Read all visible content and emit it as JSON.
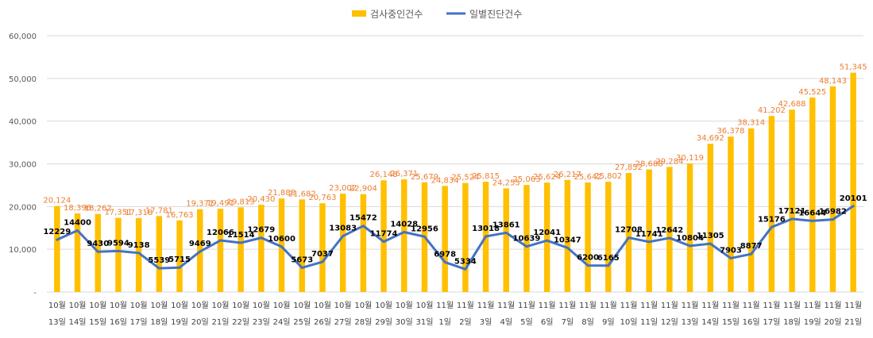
{
  "chart_data": {
    "type": "bar+line",
    "legend": {
      "position": "top",
      "items": [
        {
          "name": "검사중인건수",
          "color": "#FFC000",
          "kind": "bar"
        },
        {
          "name": "일별진단건수",
          "color": "#4472C4",
          "kind": "line"
        }
      ]
    },
    "y_axis": {
      "ylim": [
        0,
        60000
      ],
      "ticks": [
        "-",
        "10,000",
        "20,000",
        "30,000",
        "40,000",
        "50,000",
        "60,000"
      ],
      "tick_values": [
        0,
        10000,
        20000,
        30000,
        40000,
        50000,
        60000
      ],
      "grid": true
    },
    "categories": [
      [
        "10월",
        "13일"
      ],
      [
        "10월",
        "14일"
      ],
      [
        "10월",
        "15일"
      ],
      [
        "10월",
        "16일"
      ],
      [
        "10월",
        "17일"
      ],
      [
        "10월",
        "18일"
      ],
      [
        "10월",
        "19일"
      ],
      [
        "10월",
        "20일"
      ],
      [
        "10월",
        "21일"
      ],
      [
        "10월",
        "22일"
      ],
      [
        "10월",
        "23일"
      ],
      [
        "10월",
        "24일"
      ],
      [
        "10월",
        "25일"
      ],
      [
        "10월",
        "26일"
      ],
      [
        "10월",
        "27일"
      ],
      [
        "10월",
        "28일"
      ],
      [
        "10월",
        "29일"
      ],
      [
        "10월",
        "30일"
      ],
      [
        "10월",
        "31일"
      ],
      [
        "11월",
        "1일"
      ],
      [
        "11월",
        "2일"
      ],
      [
        "11월",
        "3일"
      ],
      [
        "11월",
        "4일"
      ],
      [
        "11월",
        "5일"
      ],
      [
        "11월",
        "6일"
      ],
      [
        "11월",
        "7일"
      ],
      [
        "11월",
        "8일"
      ],
      [
        "11월",
        "9일"
      ],
      [
        "11월",
        "10일"
      ],
      [
        "11월",
        "11일"
      ],
      [
        "11월",
        "12일"
      ],
      [
        "11월",
        "13일"
      ],
      [
        "11월",
        "14일"
      ],
      [
        "11월",
        "15일"
      ],
      [
        "11월",
        "16일"
      ],
      [
        "11월",
        "17일"
      ],
      [
        "11월",
        "18일"
      ],
      [
        "11월",
        "19일"
      ],
      [
        "11월",
        "20일"
      ],
      [
        "11월",
        "21일"
      ]
    ],
    "series": [
      {
        "name": "검사중인건수",
        "type": "bar",
        "color": "#FFC000",
        "label_color": "#ED7D31",
        "values": [
          20124,
          18396,
          18262,
          17351,
          17318,
          17781,
          16763,
          19371,
          19491,
          19813,
          20430,
          21888,
          21682,
          20763,
          23002,
          22904,
          26148,
          26371,
          25679,
          24834,
          25524,
          25815,
          24255,
          25063,
          25624,
          26217,
          25642,
          25802,
          27852,
          28688,
          29284,
          30119,
          34692,
          36378,
          38314,
          41202,
          42688,
          45525,
          48143,
          51345
        ],
        "labels": [
          "20,124",
          "18,396",
          "18,262",
          "17,351",
          "17,318",
          "17,781",
          "16,763",
          "19,371",
          "19,491",
          "19,813",
          "20,430",
          "21,888",
          "21,682",
          "20,763",
          "23,002",
          "22,904",
          "26,148",
          "26,371",
          "25,679",
          "24,834",
          "25,524",
          "25,815",
          "24,255",
          "25,063",
          "25,624",
          "26,217",
          "25,642",
          "25,802",
          "27,852",
          "28,688",
          "29,284",
          "30,119",
          "34,692",
          "36,378",
          "38,314",
          "41,202",
          "42,688",
          "45,525",
          "48,143",
          "51,345"
        ]
      },
      {
        "name": "일별진단건수",
        "type": "line",
        "color": "#4472C4",
        "label_color": "#000000",
        "values": [
          12229,
          14400,
          9430,
          9594,
          9138,
          5539,
          5715,
          9469,
          12066,
          11514,
          12679,
          10600,
          5673,
          7037,
          13083,
          15472,
          11774,
          14028,
          12956,
          6978,
          5334,
          13018,
          13861,
          10639,
          12041,
          10347,
          6200,
          6165,
          12708,
          11741,
          12642,
          10804,
          11305,
          7903,
          8877,
          15176,
          17121,
          16644,
          16982,
          20101
        ],
        "labels": [
          "12229",
          "14400",
          "9430",
          "9594",
          "9138",
          "5539",
          "5715",
          "9469",
          "12066",
          "11514",
          "12679",
          "10600",
          "5673",
          "7037",
          "13083",
          "15472",
          "11774",
          "14028",
          "12956",
          "6978",
          "5334",
          "13018",
          "13861",
          "10639",
          "12041",
          "10347",
          "6200",
          "6165",
          "12708",
          "11741",
          "12642",
          "10804",
          "11305",
          "7903",
          "8877",
          "15176",
          "17121",
          "16644",
          "16982",
          "20101"
        ]
      }
    ]
  }
}
